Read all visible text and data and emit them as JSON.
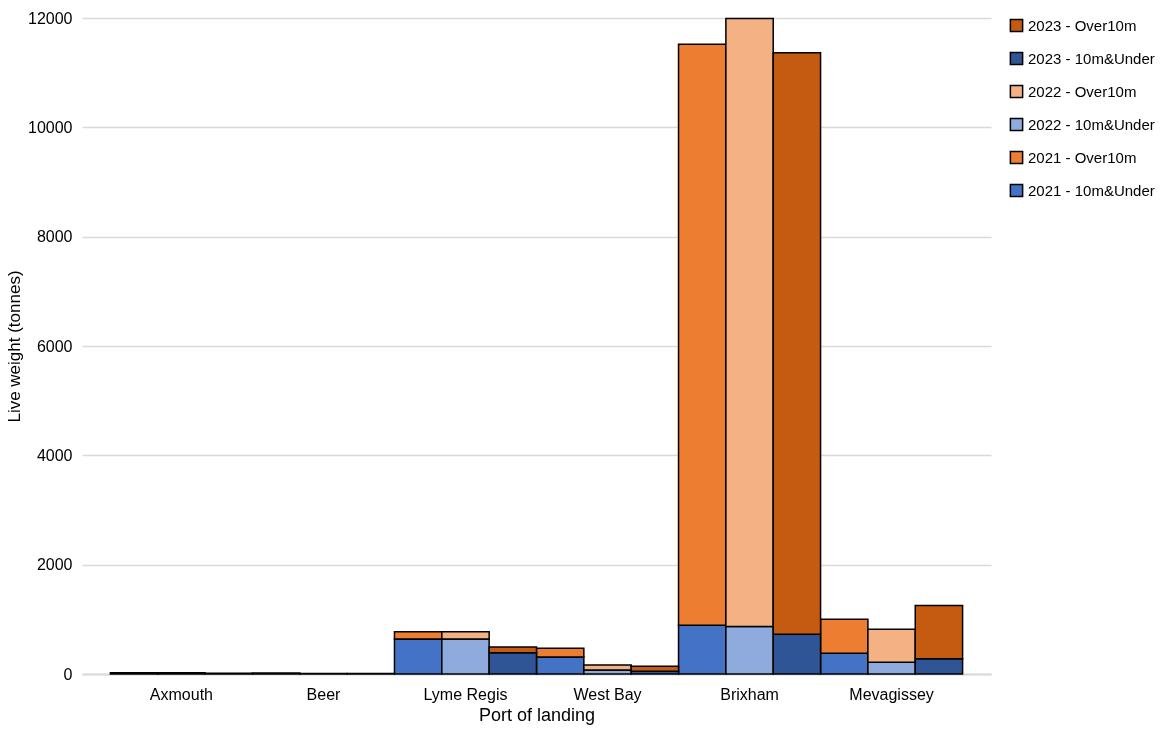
{
  "chart_data": {
    "type": "bar",
    "stacked": true,
    "xlabel": "Port of landing",
    "ylabel": "Live weight (tonnes)",
    "categories": [
      null,
      "Axmouth",
      null,
      null,
      "Beer",
      null,
      null,
      "Lyme Regis",
      null,
      null,
      "West Bay",
      null,
      null,
      "Brixham",
      null,
      null,
      "Mevagissey",
      null
    ],
    "series": [
      {
        "name": "2021 - 10m&Under",
        "color": "#4472c4",
        "values": [
          25,
          null,
          null,
          20,
          null,
          null,
          640,
          null,
          null,
          310,
          null,
          null,
          890,
          null,
          null,
          380,
          null,
          null
        ]
      },
      {
        "name": "2021 - Over10m",
        "color": "#ed7d31",
        "values": [
          null,
          null,
          null,
          null,
          null,
          null,
          135,
          null,
          null,
          160,
          null,
          null,
          10630,
          null,
          null,
          620,
          null,
          null
        ]
      },
      {
        "name": "2022 - 10m&Under",
        "color": "#8faadc",
        "values": [
          null,
          25,
          null,
          null,
          10,
          null,
          null,
          640,
          null,
          null,
          75,
          null,
          null,
          870,
          null,
          null,
          215,
          null
        ]
      },
      {
        "name": "2022 - Over10m",
        "color": "#f4b183",
        "values": [
          null,
          null,
          null,
          null,
          null,
          null,
          null,
          135,
          null,
          null,
          90,
          null,
          null,
          11120,
          null,
          null,
          605,
          null
        ]
      },
      {
        "name": "2023 - 10m&Under",
        "color": "#2f5597",
        "values": [
          null,
          null,
          15,
          null,
          null,
          10,
          null,
          null,
          390,
          null,
          null,
          50,
          null,
          null,
          725,
          null,
          null,
          280
        ]
      },
      {
        "name": "2023 - Over10m",
        "color": "#c55a11",
        "values": [
          null,
          null,
          null,
          null,
          null,
          null,
          null,
          null,
          105,
          null,
          null,
          90,
          null,
          null,
          10640,
          null,
          null,
          975
        ]
      }
    ],
    "ylim": [
      0,
      12000
    ],
    "yticks": [
      0,
      2000,
      4000,
      6000,
      8000,
      10000,
      12000
    ],
    "grid": "y",
    "legend": "right"
  }
}
